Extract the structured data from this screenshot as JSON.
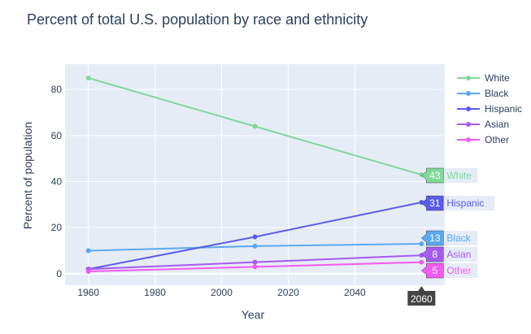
{
  "chart_data": {
    "type": "line",
    "title": "Percent of total U.S. population by race and ethnicity",
    "xlabel": "Year",
    "ylabel": "Percent of population",
    "x": [
      1960,
      2010,
      2060
    ],
    "xlim": [
      1953,
      2067
    ],
    "ylim": [
      -5,
      91
    ],
    "xticks": [
      1960,
      1980,
      2000,
      2020,
      2040
    ],
    "yticks": [
      0,
      20,
      40,
      60,
      80
    ],
    "grid": true,
    "legend_position": "top-right",
    "series": [
      {
        "name": "White",
        "color": "#7fd89a",
        "values": [
          85,
          64,
          43
        ]
      },
      {
        "name": "Black",
        "color": "#5aa9f0",
        "values": [
          10,
          12,
          13
        ]
      },
      {
        "name": "Hispanic",
        "color": "#5b5ce8",
        "values": [
          2,
          16,
          31
        ]
      },
      {
        "name": "Asian",
        "color": "#a55af0",
        "values": [
          2,
          5,
          8
        ]
      },
      {
        "name": "Other",
        "color": "#f25af0",
        "values": [
          1,
          3,
          5
        ]
      }
    ],
    "hover": {
      "x_label": "2060",
      "labels": [
        {
          "series": "White",
          "value": "43",
          "name": "White"
        },
        {
          "series": "Hispanic",
          "value": "31",
          "name": "Hispanic"
        },
        {
          "series": "Black",
          "value": "13",
          "name": "Black"
        },
        {
          "series": "Asian",
          "value": "8",
          "name": "Asian"
        },
        {
          "series": "Other",
          "value": "5",
          "name": "Other"
        }
      ]
    }
  },
  "colors": {
    "plot_bg": "#e5ecf6",
    "grid": "#ffffff",
    "text": "#2a3f5f",
    "hover_x_bg": "#444444"
  }
}
